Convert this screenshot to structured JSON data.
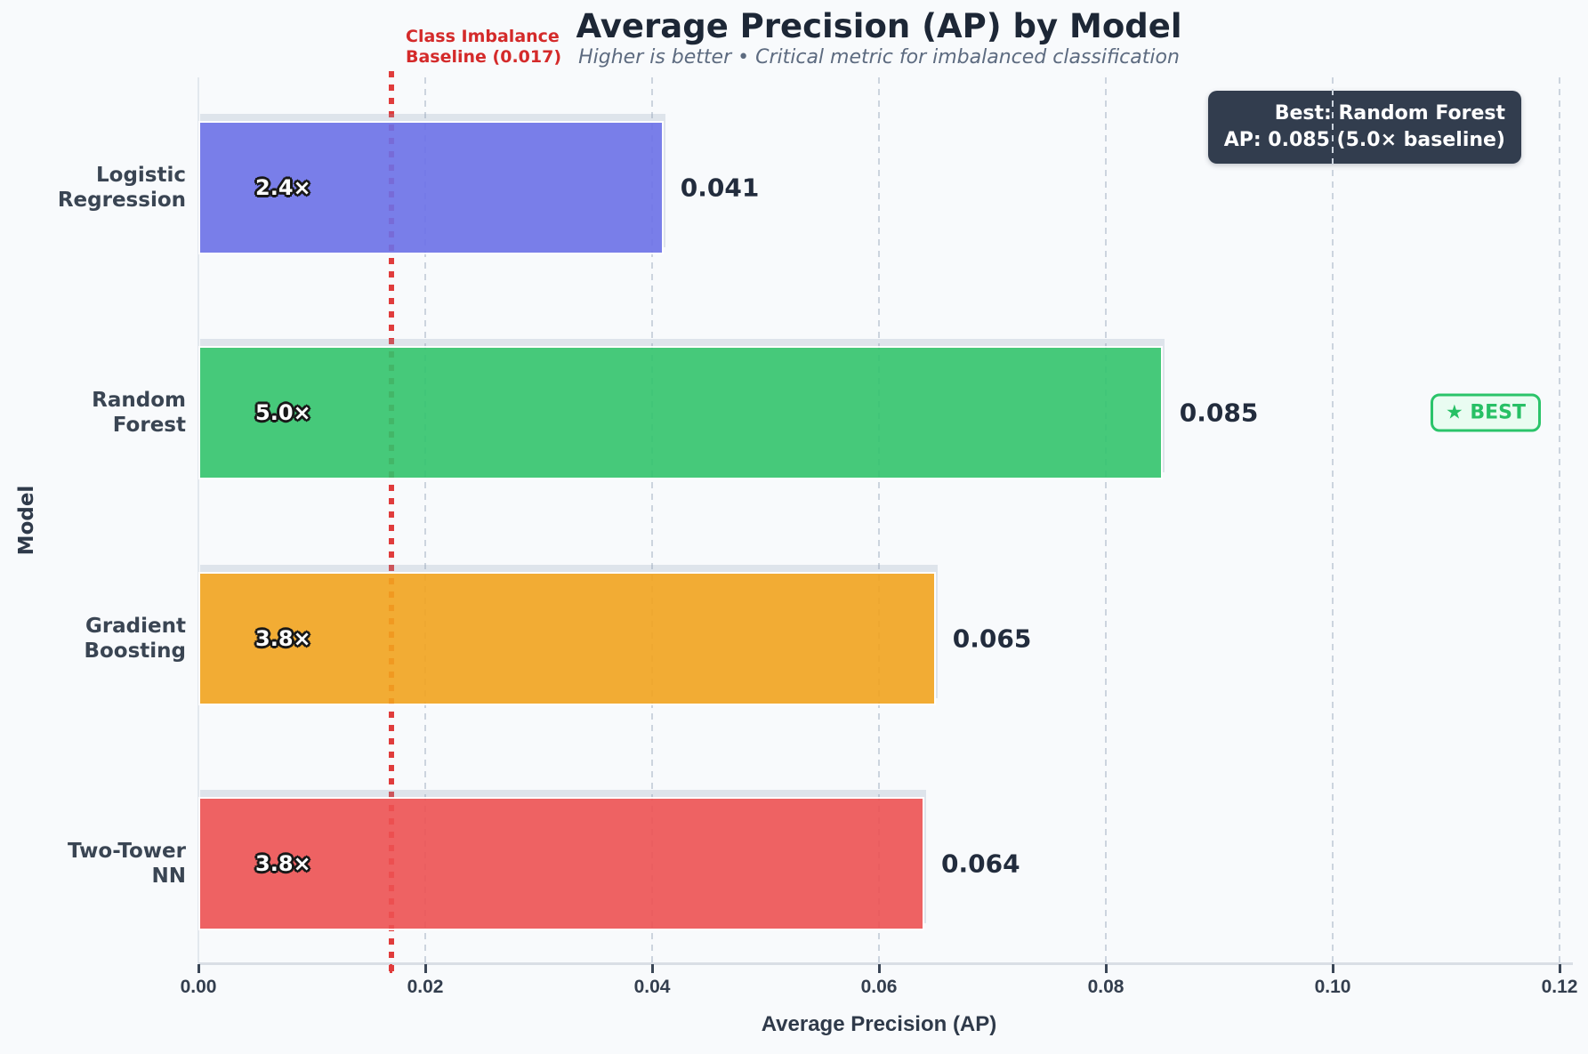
{
  "chart_data": {
    "type": "bar",
    "orientation": "horizontal",
    "title": "Average Precision (AP) by Model",
    "subtitle": "Higher is better • Critical metric for imbalanced classification",
    "xlabel": "Average Precision (AP)",
    "ylabel": "Model",
    "xlim": [
      0,
      0.12
    ],
    "grid": "vertical-dashed",
    "xticks": [
      {
        "value": 0.0,
        "label": "0.00"
      },
      {
        "value": 0.02,
        "label": "0.02"
      },
      {
        "value": 0.04,
        "label": "0.04"
      },
      {
        "value": 0.06,
        "label": "0.06"
      },
      {
        "value": 0.08,
        "label": "0.08"
      },
      {
        "value": 0.1,
        "label": "0.10"
      },
      {
        "value": 0.12,
        "label": "0.12"
      }
    ],
    "categories": [
      "Logistic Regression",
      "Random Forest",
      "Gradient Boosting",
      "Two-Tower NN"
    ],
    "category_label_lines": [
      [
        "Logistic",
        "Regression"
      ],
      [
        "Random",
        "Forest"
      ],
      [
        "Gradient",
        "Boosting"
      ],
      [
        "Two-Tower",
        "NN"
      ]
    ],
    "values": [
      0.041,
      0.085,
      0.065,
      0.064
    ],
    "value_labels": [
      "0.041",
      "0.085",
      "0.065",
      "0.064"
    ],
    "bar_labels": [
      "2.4×",
      "5.0×",
      "3.8×",
      "3.8×"
    ],
    "bar_colors": [
      "#6c71e8",
      "#33c46d",
      "#f2a41f",
      "#ee5253"
    ],
    "baseline": {
      "value": 0.017,
      "label_line1": "Class Imbalance",
      "label_line2": "Baseline (0.017)",
      "color": "#e03c3c",
      "text_color": "#d42a2a"
    },
    "annotation_box": {
      "line1": "Best: Random Forest",
      "line2": "AP: 0.085 (5.0× baseline)"
    },
    "best_badge": {
      "label": "★ BEST",
      "category_index": 1
    }
  },
  "colors": {
    "background": "#f8fafc",
    "title_text": "#1d2736",
    "subtitle_text": "#5d6b80",
    "info_box_bg": "#323d4e",
    "badge_green": "#2bc46a"
  }
}
